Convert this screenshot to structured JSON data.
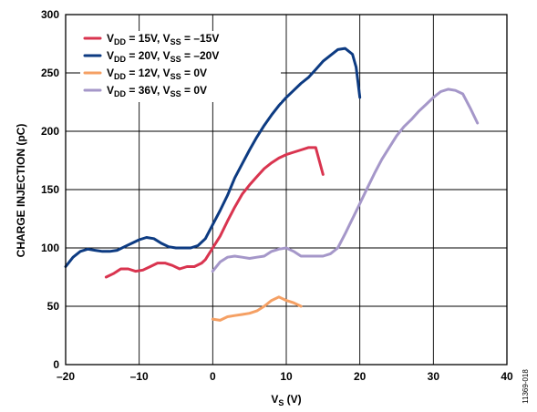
{
  "chart_data": {
    "type": "line",
    "xlabel_main": "V",
    "xlabel_sub": "S",
    "xlabel_unit": " (V)",
    "ylabel": "CHARGE INJECTION (pC)",
    "xlim": [
      -20,
      40
    ],
    "ylim": [
      0,
      300
    ],
    "xticks": [
      -20,
      -10,
      0,
      10,
      20,
      30,
      40
    ],
    "xtick_labels": [
      "–20",
      "–10",
      "0",
      "10",
      "20",
      "30",
      "40"
    ],
    "yticks": [
      0,
      50,
      100,
      150,
      200,
      250,
      300
    ],
    "ytick_labels": [
      "0",
      "50",
      "100",
      "150",
      "200",
      "250",
      "300"
    ],
    "grid": true,
    "legend_position": "top-left",
    "figure_id": "11369-018",
    "series": [
      {
        "legend": {
          "a": "V",
          "a_sub": "DD",
          "b": " = 15V, V",
          "b_sub": "SS",
          "c": " = –15V"
        },
        "color": "#d9344f",
        "x": [
          -14.5,
          -13.5,
          -12.5,
          -11.5,
          -10.5,
          -9.5,
          -8.5,
          -7.5,
          -6.5,
          -5.5,
          -4.5,
          -3.5,
          -2.5,
          -1.5,
          -1,
          -0.5,
          0,
          1,
          2,
          3,
          4,
          5,
          6,
          7,
          8,
          9,
          10,
          11,
          12,
          13,
          14,
          15
        ],
        "y": [
          75,
          78,
          82,
          82,
          80,
          81,
          84,
          87,
          87,
          85,
          82,
          84,
          84,
          87,
          90,
          95,
          100,
          110,
          123,
          135,
          146,
          154,
          161,
          168,
          173,
          177,
          180,
          182,
          184,
          186,
          186,
          163
        ]
      },
      {
        "legend": {
          "a": "V",
          "a_sub": "DD",
          "b": " = 20V, V",
          "b_sub": "SS",
          "c": " = –20V"
        },
        "color": "#0d3b82",
        "x": [
          -20,
          -19,
          -18,
          -17,
          -16,
          -15,
          -14,
          -13,
          -12,
          -11,
          -10,
          -9,
          -8,
          -7,
          -6,
          -5,
          -4,
          -3,
          -2,
          -1,
          0,
          1,
          2,
          3,
          4,
          5,
          6,
          7,
          8,
          9,
          10,
          11,
          12,
          13,
          14,
          15,
          16,
          17,
          18,
          19,
          19.5,
          20
        ],
        "y": [
          84,
          92,
          97,
          99,
          98,
          97,
          97,
          98,
          101,
          104,
          107,
          109,
          108,
          104,
          101,
          100,
          100,
          100,
          102,
          108,
          120,
          132,
          145,
          160,
          172,
          184,
          195,
          205,
          214,
          222,
          229,
          235,
          241,
          246,
          253,
          260,
          265,
          270,
          271,
          266,
          255,
          229
        ]
      },
      {
        "legend": {
          "a": "V",
          "a_sub": "DD",
          "b": " = 12V, V",
          "b_sub": "SS",
          "c": " = 0V"
        },
        "color": "#f5a064",
        "x": [
          0,
          1,
          2,
          3,
          4,
          5,
          6,
          7,
          8,
          9,
          10,
          11,
          12
        ],
        "y": [
          39,
          38,
          41,
          42,
          43,
          44,
          46,
          50,
          55,
          58,
          55,
          53,
          50
        ]
      },
      {
        "legend": {
          "a": "V",
          "a_sub": "DD",
          "b": " = 36V, V",
          "b_sub": "SS",
          "c": " = 0V"
        },
        "color": "#a597c9",
        "x": [
          0,
          1,
          2,
          3,
          4,
          5,
          6,
          7,
          8,
          9,
          10,
          11,
          12,
          13,
          14,
          15,
          16,
          17,
          18,
          19,
          20,
          21,
          22,
          23,
          24,
          25,
          26,
          27,
          28,
          29,
          30,
          31,
          32,
          33,
          34,
          35,
          36
        ],
        "y": [
          80,
          88,
          92,
          93,
          92,
          91,
          92,
          93,
          97,
          99,
          100,
          97,
          93,
          93,
          93,
          93,
          95,
          100,
          112,
          125,
          138,
          151,
          164,
          176,
          186,
          196,
          204,
          210,
          217,
          223,
          229,
          234,
          236,
          235,
          232,
          220,
          207
        ]
      }
    ]
  }
}
